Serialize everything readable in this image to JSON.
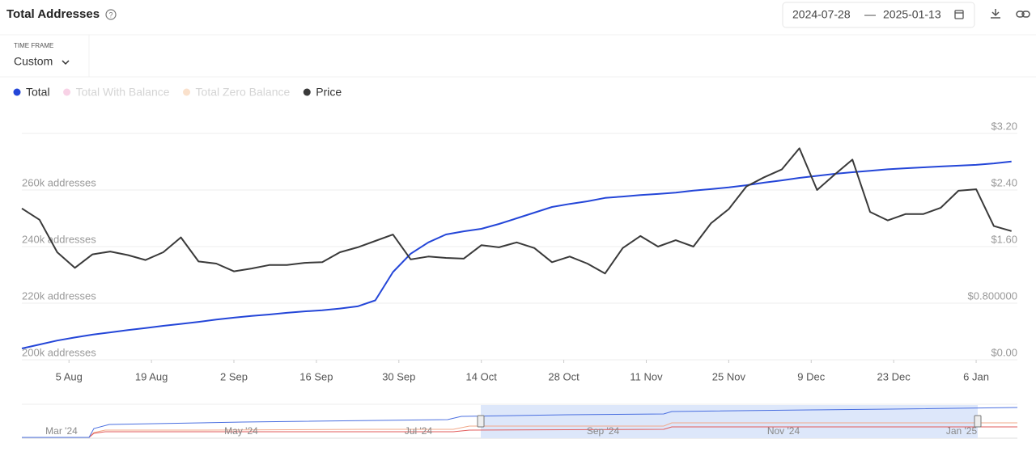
{
  "ui": {
    "title": "Total Addresses",
    "date_separator": "—",
    "timeframe_label": "TIME FRAME",
    "timeframe_value": "Custom",
    "navigator_ticks": [
      "Mar '24",
      "May '24",
      "Jul '24",
      "Sep '24",
      "Nov '24",
      "Jan '25"
    ]
  },
  "chart_data": {
    "type": "line",
    "x": [
      "2024-07-28",
      "2024-07-31",
      "2024-08-03",
      "2024-08-06",
      "2024-08-09",
      "2024-08-12",
      "2024-08-15",
      "2024-08-18",
      "2024-08-21",
      "2024-08-24",
      "2024-08-27",
      "2024-08-30",
      "2024-09-02",
      "2024-09-05",
      "2024-09-08",
      "2024-09-11",
      "2024-09-14",
      "2024-09-17",
      "2024-09-20",
      "2024-09-23",
      "2024-09-26",
      "2024-09-29",
      "2024-10-02",
      "2024-10-05",
      "2024-10-08",
      "2024-10-11",
      "2024-10-14",
      "2024-10-17",
      "2024-10-20",
      "2024-10-23",
      "2024-10-26",
      "2024-10-29",
      "2024-11-01",
      "2024-11-04",
      "2024-11-07",
      "2024-11-10",
      "2024-11-13",
      "2024-11-16",
      "2024-11-19",
      "2024-11-22",
      "2024-11-25",
      "2024-11-28",
      "2024-12-01",
      "2024-12-04",
      "2024-12-07",
      "2024-12-10",
      "2024-12-13",
      "2024-12-16",
      "2024-12-19",
      "2024-12-22",
      "2024-12-25",
      "2024-12-28",
      "2024-12-31",
      "2025-01-03",
      "2025-01-06",
      "2025-01-09",
      "2025-01-12"
    ],
    "xlim": [
      "2024-07-28",
      "2025-01-13"
    ],
    "xticks": [
      {
        "value": "2024-08-05",
        "label": "5 Aug"
      },
      {
        "value": "2024-08-19",
        "label": "19 Aug"
      },
      {
        "value": "2024-09-02",
        "label": "2 Sep"
      },
      {
        "value": "2024-09-16",
        "label": "16 Sep"
      },
      {
        "value": "2024-09-30",
        "label": "30 Sep"
      },
      {
        "value": "2024-10-14",
        "label": "14 Oct"
      },
      {
        "value": "2024-10-28",
        "label": "28 Oct"
      },
      {
        "value": "2024-11-11",
        "label": "11 Nov"
      },
      {
        "value": "2024-11-25",
        "label": "25 Nov"
      },
      {
        "value": "2024-12-09",
        "label": "9 Dec"
      },
      {
        "value": "2024-12-23",
        "label": "23 Dec"
      },
      {
        "value": "2025-01-06",
        "label": "6 Jan"
      }
    ],
    "ylim": [
      200000,
      280000
    ],
    "yticks": [
      {
        "value": 200000,
        "label": "200k addresses"
      },
      {
        "value": 220000,
        "label": "220k addresses"
      },
      {
        "value": 240000,
        "label": "240k addresses"
      },
      {
        "value": 260000,
        "label": "260k addresses"
      }
    ],
    "y2lim": [
      0,
      3.2
    ],
    "y2ticks": [
      {
        "value": 0,
        "label": "$0.00"
      },
      {
        "value": 0.8,
        "label": "$0.800000"
      },
      {
        "value": 1.6,
        "label": "$1.60"
      },
      {
        "value": 2.4,
        "label": "$2.40"
      },
      {
        "value": 3.2,
        "label": "$3.20"
      }
    ],
    "grid": true,
    "series": [
      {
        "name": "Total",
        "color": "#2446d8",
        "visible": true,
        "values": [
          204000,
          205400,
          206800,
          207900,
          208900,
          209700,
          210500,
          211200,
          212000,
          212700,
          213400,
          214200,
          214900,
          215500,
          216000,
          216600,
          217100,
          217500,
          218100,
          218900,
          221000,
          231000,
          237500,
          241500,
          244300,
          245400,
          246300,
          248000,
          250000,
          252000,
          254000,
          255100,
          256000,
          257200,
          257700,
          258200,
          258600,
          259100,
          259800,
          260300,
          260900,
          261700,
          262600,
          263400,
          264300,
          265000,
          265700,
          266300,
          266800,
          267300,
          267700,
          268000,
          268300,
          268600,
          268900,
          269400,
          270100
        ]
      },
      {
        "name": "Total With Balance",
        "color": "#f3a6cf",
        "visible": false,
        "values": [
          null,
          null,
          null,
          null,
          null,
          null,
          null,
          null,
          null,
          null,
          null,
          null,
          null,
          null,
          null,
          null,
          null,
          null,
          null,
          null,
          null,
          null,
          null,
          null,
          null,
          null,
          null,
          null,
          null,
          null,
          null,
          null,
          null,
          null,
          null,
          null,
          null,
          null,
          null,
          null,
          null,
          null,
          null,
          null,
          null,
          null,
          null,
          null,
          null,
          null,
          null,
          null,
          null,
          null,
          null,
          null,
          null
        ]
      },
      {
        "name": "Total Zero Balance",
        "color": "#f7c49b",
        "visible": false,
        "values": [
          null,
          null,
          null,
          null,
          null,
          null,
          null,
          null,
          null,
          null,
          null,
          null,
          null,
          null,
          null,
          null,
          null,
          null,
          null,
          null,
          null,
          null,
          null,
          null,
          null,
          null,
          null,
          null,
          null,
          null,
          null,
          null,
          null,
          null,
          null,
          null,
          null,
          null,
          null,
          null,
          null,
          null,
          null,
          null,
          null,
          null,
          null,
          null,
          null,
          null,
          null,
          null,
          null,
          null,
          null,
          null,
          null
        ]
      },
      {
        "name": "Price",
        "color": "#3a3a3a",
        "visible": true,
        "axis": "y2",
        "values": [
          2.14,
          1.98,
          1.52,
          1.3,
          1.49,
          1.53,
          1.48,
          1.41,
          1.52,
          1.73,
          1.39,
          1.36,
          1.25,
          1.29,
          1.34,
          1.34,
          1.37,
          1.38,
          1.52,
          1.59,
          1.68,
          1.77,
          1.42,
          1.46,
          1.44,
          1.43,
          1.62,
          1.59,
          1.66,
          1.58,
          1.38,
          1.46,
          1.36,
          1.22,
          1.58,
          1.75,
          1.6,
          1.69,
          1.6,
          1.93,
          2.13,
          2.45,
          2.58,
          2.69,
          2.99,
          2.4,
          2.62,
          2.83,
          2.09,
          1.97,
          2.06,
          2.06,
          2.15,
          2.39,
          2.41,
          1.89,
          1.82
        ]
      }
    ]
  }
}
